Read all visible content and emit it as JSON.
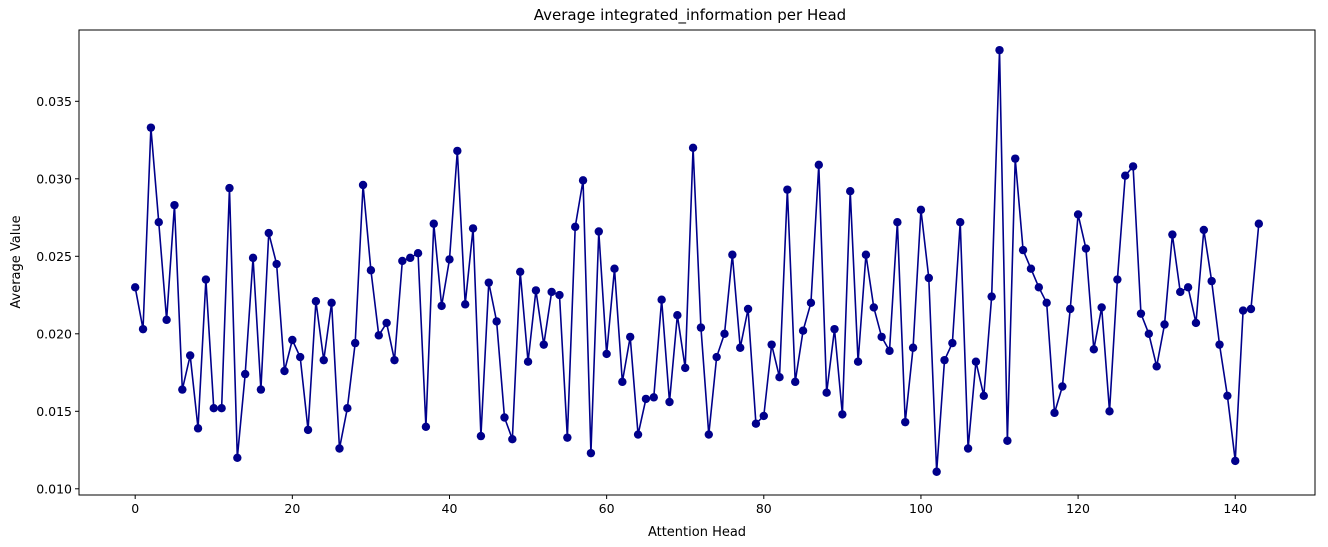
{
  "chart_data": {
    "type": "line",
    "title": "Average integrated_information per Head",
    "xlabel": "Attention Head",
    "ylabel": "Average Value",
    "xlim": [
      -7.15,
      150.15
    ],
    "ylim": [
      0.0096,
      0.0396
    ],
    "xticks": [
      0,
      20,
      40,
      60,
      80,
      100,
      120,
      140
    ],
    "xtick_labels": [
      "0",
      "20",
      "40",
      "60",
      "80",
      "100",
      "120",
      "140"
    ],
    "yticks": [
      0.01,
      0.015,
      0.02,
      0.025,
      0.03,
      0.035
    ],
    "ytick_labels": [
      "0.010",
      "0.015",
      "0.020",
      "0.025",
      "0.030",
      "0.035"
    ],
    "grid": false,
    "color": "#00008b",
    "marker": "circle",
    "x_start": 0,
    "values": [
      0.023,
      0.0203,
      0.0333,
      0.0272,
      0.0209,
      0.0283,
      0.0164,
      0.0186,
      0.0139,
      0.0235,
      0.0152,
      0.0152,
      0.0294,
      0.012,
      0.0174,
      0.0249,
      0.0164,
      0.0265,
      0.0245,
      0.0176,
      0.0196,
      0.0185,
      0.0138,
      0.0221,
      0.0183,
      0.022,
      0.0126,
      0.0152,
      0.0194,
      0.0296,
      0.0241,
      0.0199,
      0.0207,
      0.0183,
      0.0247,
      0.0249,
      0.0252,
      0.014,
      0.0271,
      0.0218,
      0.0248,
      0.0318,
      0.0219,
      0.0268,
      0.0134,
      0.0233,
      0.0208,
      0.0146,
      0.0132,
      0.024,
      0.0182,
      0.0228,
      0.0193,
      0.0227,
      0.0225,
      0.0133,
      0.0269,
      0.0299,
      0.0123,
      0.0266,
      0.0187,
      0.0242,
      0.0169,
      0.0198,
      0.0135,
      0.0158,
      0.0159,
      0.0222,
      0.0156,
      0.0212,
      0.0178,
      0.032,
      0.0204,
      0.0135,
      0.0185,
      0.02,
      0.0251,
      0.0191,
      0.0216,
      0.0142,
      0.0147,
      0.0193,
      0.0172,
      0.0293,
      0.0169,
      0.0202,
      0.022,
      0.0309,
      0.0162,
      0.0203,
      0.0148,
      0.0292,
      0.0182,
      0.0251,
      0.0217,
      0.0198,
      0.0189,
      0.0272,
      0.0143,
      0.0191,
      0.028,
      0.0236,
      0.0111,
      0.0183,
      0.0194,
      0.0272,
      0.0126,
      0.0182,
      0.016,
      0.0224,
      0.0383,
      0.0131,
      0.0313,
      0.0254,
      0.0242,
      0.023,
      0.022,
      0.0149,
      0.0166,
      0.0216,
      0.0277,
      0.0255,
      0.019,
      0.0217,
      0.015,
      0.0235,
      0.0302,
      0.0308,
      0.0213,
      0.02,
      0.0179,
      0.0206,
      0.0264,
      0.0227,
      0.023,
      0.0207,
      0.0267,
      0.0234,
      0.0193,
      0.016,
      0.0118,
      0.0215,
      0.0216,
      0.0271
    ]
  }
}
